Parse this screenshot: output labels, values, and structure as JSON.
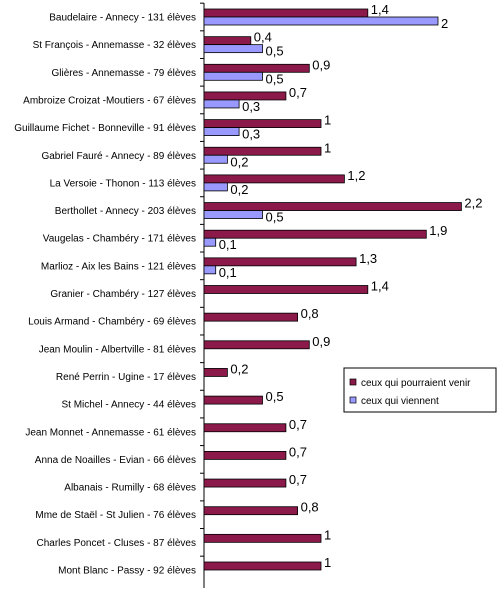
{
  "chart_data": {
    "type": "bar",
    "orientation": "horizontal",
    "categories": [
      "Baudelaire - Annecy - 131 élèves",
      "St François - Annemasse - 32 élèves",
      "Glières - Annemasse - 79 élèves",
      "Ambroize Croizat -Moutiers - 67 élèves",
      "Guillaume Fichet - Bonneville - 91 élèves",
      "Gabriel Fauré - Annecy - 89 élèves",
      "La Versoie - Thonon - 113 élèves",
      "Berthollet - Annecy - 203 élèves",
      "Vaugelas - Chambéry - 171 élèves",
      "Marlioz - Aix les Bains - 121 élèves",
      "Granier - Chambéry - 127 élèves",
      "Louis Armand - Chambéry -  69 élèves",
      "Jean Moulin - Albertville - 81 élèves",
      "René Perrin - Ugine - 17 élèves",
      "St Michel - Annecy - 44 élèves",
      "Jean Monnet  - Annemasse - 61 élèves",
      "Anna de Noailles - Evian - 66 élèves",
      "Albanais - Rumilly - 68 élèves",
      "Mme de Staël  - St Julien - 76 élèves",
      "Charles Poncet - Cluses - 87 élèves",
      "Mont Blanc - Passy - 92 élèves"
    ],
    "series": [
      {
        "name": "ceux qui pourraient venir",
        "color": "#8B1A4A",
        "values": [
          1.4,
          0.4,
          0.9,
          0.7,
          1,
          1,
          1.2,
          2.2,
          1.9,
          1.3,
          1.4,
          0.8,
          0.9,
          0.2,
          0.5,
          0.7,
          0.7,
          0.7,
          0.8,
          1,
          1
        ],
        "labels": [
          "1,4",
          "0,4",
          "0,9",
          "0,7",
          "1",
          "1",
          "1,2",
          "2,2",
          "1,9",
          "1,3",
          "1,4",
          "0,8",
          "0,9",
          "0,2",
          "0,5",
          "0,7",
          "0,7",
          "0,7",
          "0,8",
          "1",
          "1"
        ]
      },
      {
        "name": "ceux qui viennent",
        "color": "#9999FF",
        "values": [
          2,
          0.5,
          0.5,
          0.3,
          0.3,
          0.2,
          0.2,
          0.5,
          0.1,
          0.1,
          null,
          null,
          null,
          null,
          null,
          null,
          null,
          null,
          null,
          null,
          null
        ],
        "labels": [
          "2",
          "0,5",
          "0,5",
          "0,3",
          "0,3",
          "0,2",
          "0,2",
          "0,5",
          "0,1",
          "0,1",
          null,
          null,
          null,
          null,
          null,
          null,
          null,
          null,
          null,
          null,
          null
        ]
      }
    ],
    "xlim": [
      0,
      2.2
    ],
    "grid": false,
    "legend_position": "right"
  }
}
